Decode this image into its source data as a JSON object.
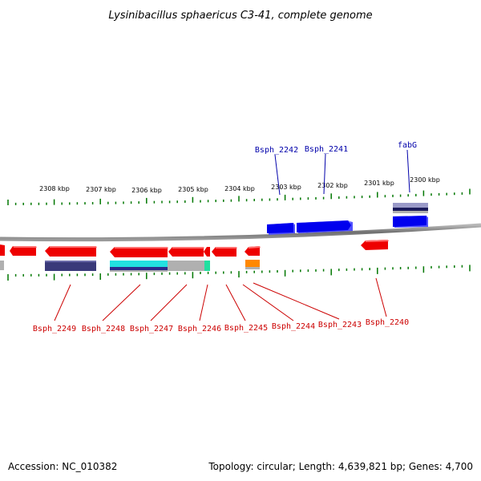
{
  "title": "Lysinibacillus sphaericus C3-41, complete genome",
  "footer": {
    "accession": "Accession: NC_010382",
    "topology": "Topology: circular; Length: 4,639,821 bp; Genes: 4,700"
  },
  "colors": {
    "forward_label": "#0000aa",
    "reverse_label": "#cc0000",
    "forward_gene": "#0000ee",
    "reverse_gene": "#ee0000",
    "tick": "#007700",
    "backbone": "#808080",
    "feature_navy": "#3a3a7a",
    "feature_cyan": "#22e0e0",
    "feature_gray": "#b0b0b0",
    "feature_green": "#22e0a0",
    "feature_orange": "#ff8800"
  },
  "scale_labels": [
    "2308 kbp",
    "2307 kbp",
    "2306 kbp",
    "2305 kbp",
    "2304 kbp",
    "2303 kbp",
    "2302 kbp",
    "2301 kbp",
    "2300 kbp"
  ],
  "forward_genes": [
    {
      "label": "Bsph_2242"
    },
    {
      "label": "Bsph_2241"
    },
    {
      "label": "fabG"
    }
  ],
  "reverse_genes": [
    {
      "label": "Bsph_2249"
    },
    {
      "label": "Bsph_2248"
    },
    {
      "label": "Bsph_2247"
    },
    {
      "label": "Bsph_2246"
    },
    {
      "label": "Bsph_2245"
    },
    {
      "label": "Bsph_2244"
    },
    {
      "label": "Bsph_2243"
    },
    {
      "label": "Bsph_2240"
    }
  ]
}
